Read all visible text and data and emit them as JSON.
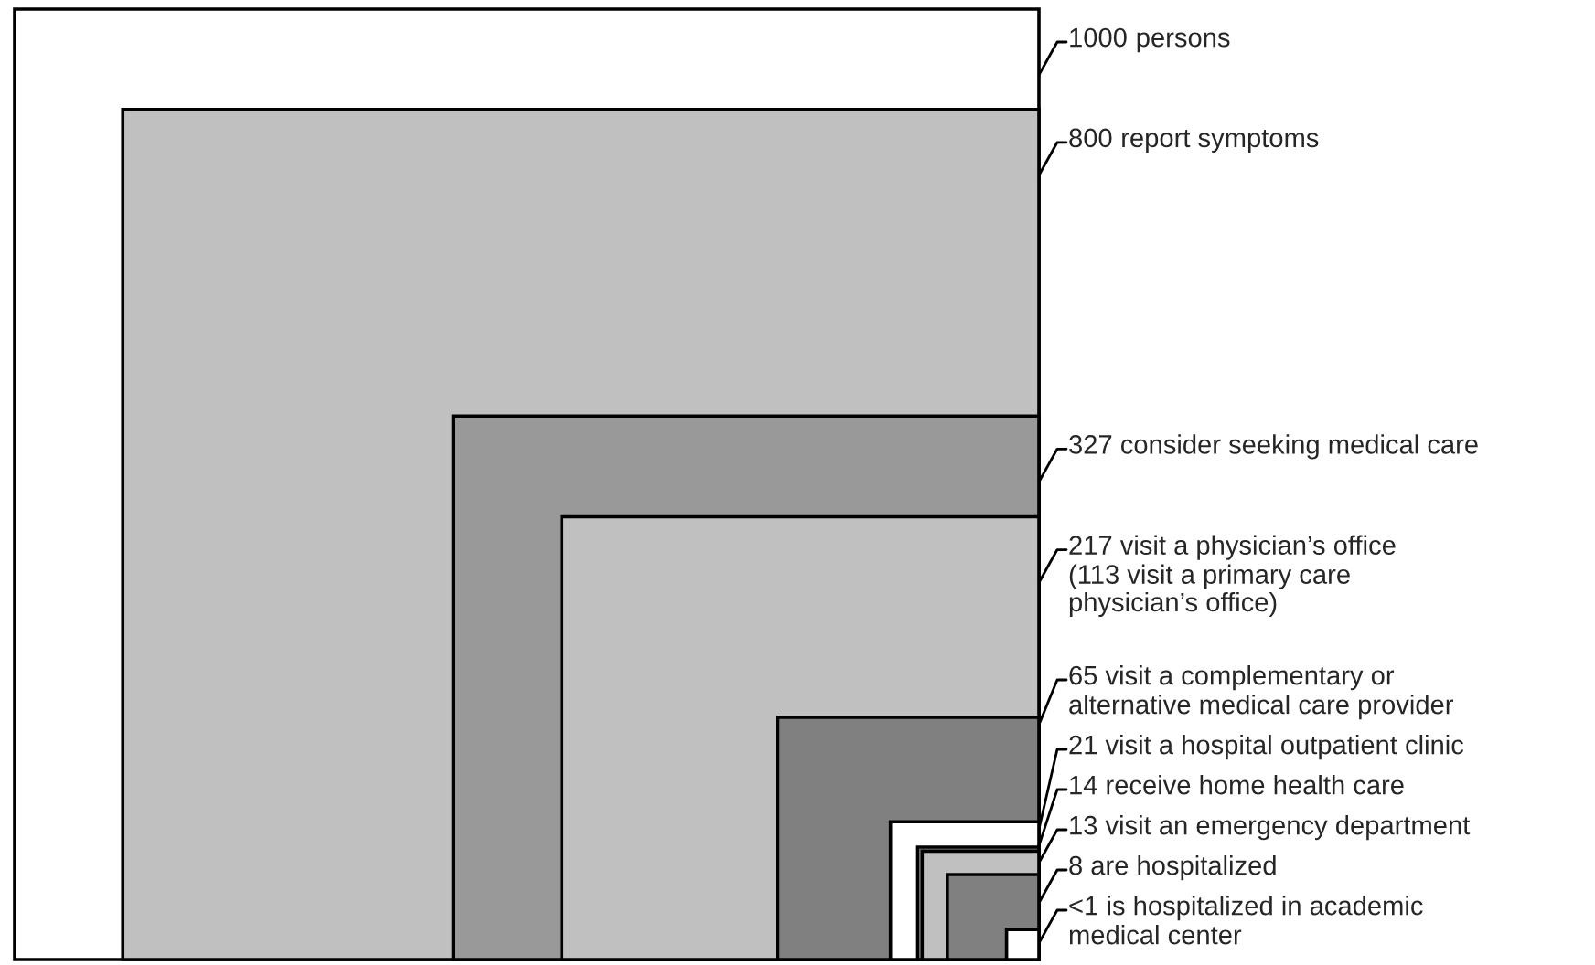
{
  "chart_data": {
    "type": "other",
    "categories": [
      "persons",
      "report symptoms",
      "consider seeking medical care",
      "visit a physician’s office\n(113 visit a primary care\nphysician’s office)",
      "visit a complementary or\nalternative medical care provider",
      "visit a hospital outpatient clinic",
      "receive home health care",
      "visit an emergency department",
      "are hospitalized",
      "is hospitalized in academic\nmedical center"
    ],
    "values": [
      1000,
      800,
      327,
      217,
      65,
      21,
      14,
      13,
      8,
      null
    ],
    "value_labels": [
      "1000",
      "800",
      "327",
      "217",
      "65",
      "21",
      "14",
      "13",
      "8",
      "<1"
    ],
    "colors": [
      "#ffffff",
      "#c0c0c0",
      "#999999",
      "#c0c0c0",
      "#808080",
      "#ffffff",
      "#999999",
      "#c0c0c0",
      "#808080",
      "#ffffff"
    ]
  }
}
